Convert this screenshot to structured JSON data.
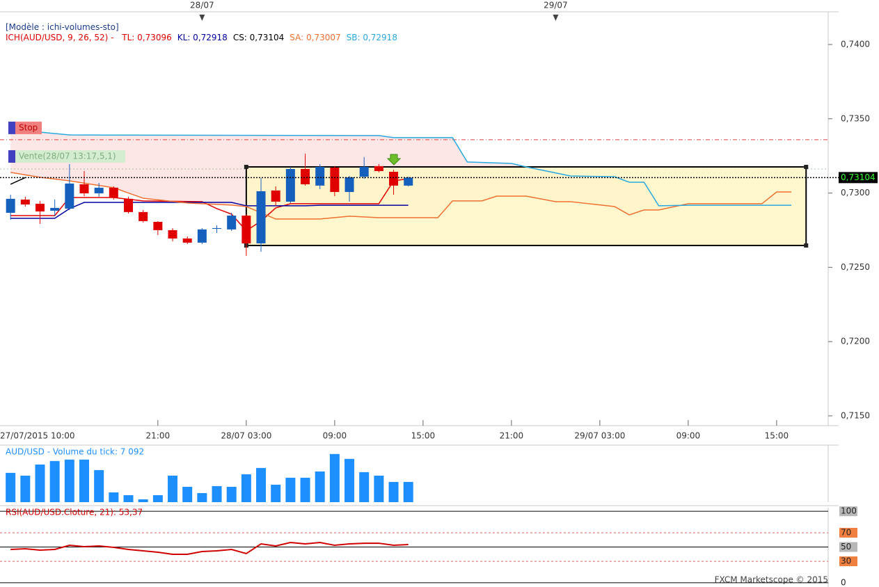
{
  "header": "[Modèle : ichi-volumes-sto]",
  "footer": "FXCM Marketscope © 2015",
  "chart_data": [
    {
      "type": "candlestick",
      "title": "ICH(AUD/USD, 9, 26, 52) -",
      "x": [
        "2015-07-27T11:00",
        "2015-07-27T12:00",
        "2015-07-27T13:00",
        "2015-07-27T14:00",
        "2015-07-27T15:00",
        "2015-07-27T16:00",
        "2015-07-27T17:00",
        "2015-07-27T18:00",
        "2015-07-27T19:00",
        "2015-07-27T20:00",
        "2015-07-27T21:00",
        "2015-07-27T22:00",
        "2015-07-27T23:00",
        "2015-07-28T00:00",
        "2015-07-28T01:00",
        "2015-07-28T02:00",
        "2015-07-28T03:00",
        "2015-07-28T04:00",
        "2015-07-28T05:00",
        "2015-07-28T06:00",
        "2015-07-28T07:00",
        "2015-07-28T08:00",
        "2015-07-28T09:00",
        "2015-07-28T10:00",
        "2015-07-28T11:00",
        "2015-07-28T12:00",
        "2015-07-28T13:00",
        "2015-07-28T14:00"
      ],
      "open": [
        0.72867,
        0.72956,
        0.72928,
        0.72881,
        0.72895,
        0.73059,
        0.72998,
        0.73036,
        0.72961,
        0.72872,
        0.72806,
        0.7275,
        0.72694,
        0.72666,
        0.72759,
        0.72755,
        0.72848,
        0.72661,
        0.73017,
        0.72942,
        0.73162,
        0.7305,
        0.73171,
        0.73007,
        0.7311,
        0.73181,
        0.73143,
        0.7305
      ],
      "high": [
        0.72989,
        0.72975,
        0.72947,
        0.72956,
        0.73195,
        0.73148,
        0.73068,
        0.73045,
        0.72975,
        0.72886,
        0.72811,
        0.72764,
        0.72708,
        0.72764,
        0.72783,
        0.72867,
        0.72858,
        0.73101,
        0.73045,
        0.73176,
        0.73265,
        0.73195,
        0.73181,
        0.73115,
        0.73242,
        0.73195,
        0.73157,
        0.7311
      ],
      "low": [
        0.7282,
        0.72909,
        0.72792,
        0.72844,
        0.72886,
        0.72979,
        0.72975,
        0.72956,
        0.72862,
        0.72801,
        0.72717,
        0.72675,
        0.72656,
        0.72656,
        0.72731,
        0.72745,
        0.72577,
        0.72605,
        0.72914,
        0.72933,
        0.7305,
        0.73026,
        0.72979,
        0.72942,
        0.73096,
        0.73139,
        0.72989,
        0.73045
      ],
      "close": [
        0.72961,
        0.72923,
        0.72876,
        0.729,
        0.73064,
        0.72998,
        0.73036,
        0.7297,
        0.72872,
        0.72811,
        0.7275,
        0.72694,
        0.72666,
        0.72755,
        0.72764,
        0.72848,
        0.72661,
        0.73012,
        0.72942,
        0.73162,
        0.73059,
        0.73176,
        0.73007,
        0.73106,
        0.73176,
        0.73148,
        0.7305,
        0.73104
      ],
      "up_color": "#1560bd",
      "down_color": "#e00000",
      "series": [
        {
          "name": "TL: 0,73096",
          "color": "#e00000",
          "x": [
            "2015-07-27T11:00",
            "2015-07-27T14:00",
            "2015-07-27T15:00",
            "2015-07-27T18:00",
            "2015-07-27T20:00",
            "2015-07-28T00:00",
            "2015-07-28T01:00",
            "2015-07-28T02:00",
            "2015-07-28T03:00",
            "2015-07-28T04:00",
            "2015-07-28T05:00",
            "2015-07-28T06:00",
            "2015-07-28T12:00",
            "2015-07-28T13:00",
            "2015-07-28T14:00"
          ],
          "values": [
            0.72848,
            0.72848,
            0.7297,
            0.7297,
            0.72947,
            0.72942,
            0.72895,
            0.72858,
            0.72746,
            0.72811,
            0.729,
            0.72928,
            0.72928,
            0.73082,
            0.73096
          ]
        },
        {
          "name": "KL: 0,72918",
          "color": "#0000a0",
          "x": [
            "2015-07-27T11:00",
            "2015-07-27T14:00",
            "2015-07-27T15:00",
            "2015-07-27T16:00",
            "2015-07-28T02:00",
            "2015-07-28T03:00",
            "2015-07-28T07:00",
            "2015-07-28T08:00",
            "2015-07-28T14:00"
          ],
          "values": [
            0.7283,
            0.7283,
            0.72895,
            0.72937,
            0.72937,
            0.72914,
            0.72914,
            0.72918,
            0.72918
          ]
        },
        {
          "name": "CS: 0,73104",
          "color": "#000000",
          "x": [
            "2015-07-27T11:00",
            "2015-07-27T12:00"
          ],
          "values": [
            0.73059,
            0.73104
          ]
        },
        {
          "name": "SA: 0,73007",
          "color": "#f07030",
          "x": [
            "2015-07-27T11:00",
            "2015-07-27T13:00",
            "2015-07-27T15:00",
            "2015-07-27T18:00",
            "2015-07-27T20:00",
            "2015-07-27T23:00",
            "2015-07-28T02:00",
            "2015-07-28T03:00",
            "2015-07-28T05:00",
            "2015-07-28T08:00",
            "2015-07-28T10:00",
            "2015-07-28T12:00",
            "2015-07-28T16:00",
            "2015-07-28T17:00",
            "2015-07-28T19:00",
            "2015-07-28T20:00",
            "2015-07-28T22:00",
            "2015-07-29T00:00",
            "2015-07-29T01:00",
            "2015-07-29T04:00",
            "2015-07-29T05:00",
            "2015-07-29T06:00",
            "2015-07-29T07:00",
            "2015-07-29T09:00",
            "2015-07-29T14:00",
            "2015-07-29T15:00",
            "2015-07-29T16:00"
          ],
          "values": [
            0.73139,
            0.73106,
            0.73082,
            0.73036,
            0.72965,
            0.72933,
            0.72919,
            0.72909,
            0.72825,
            0.72825,
            0.72844,
            0.72834,
            0.72834,
            0.72947,
            0.72947,
            0.72979,
            0.72979,
            0.72942,
            0.72942,
            0.72909,
            0.72853,
            0.72886,
            0.72886,
            0.72928,
            0.72928,
            0.73007,
            0.73007
          ]
        },
        {
          "name": "SB: 0,72918",
          "color": "#29a8e0",
          "x": [
            "2015-07-27T11:00",
            "2015-07-27T13:00",
            "2015-07-27T15:00",
            "2015-07-28T12:00",
            "2015-07-28T13:00",
            "2015-07-28T17:00",
            "2015-07-28T18:00",
            "2015-07-28T21:00",
            "2015-07-28T22:00",
            "2015-07-29T01:00",
            "2015-07-29T04:00",
            "2015-07-29T05:00",
            "2015-07-29T06:00",
            "2015-07-29T07:00",
            "2015-07-29T09:00",
            "2015-07-29T16:00"
          ],
          "values": [
            0.73457,
            0.7341,
            0.73391,
            0.73387,
            0.73373,
            0.73373,
            0.73209,
            0.73199,
            0.73176,
            0.73115,
            0.7311,
            0.73073,
            0.73073,
            0.72914,
            0.72918,
            0.72918
          ]
        }
      ],
      "cloud_color": "#fde6e6",
      "xlim": [
        "2015-07-27T10:17",
        "2015-07-29T18:30"
      ],
      "xticks": [
        {
          "value": "2015-07-27T10:00",
          "label": "27/07/2015 10:00"
        },
        {
          "value": "2015-07-27T21:00",
          "label": "21:00"
        },
        {
          "value": "2015-07-28T03:00",
          "label": "28/07 03:00"
        },
        {
          "value": "2015-07-28T09:00",
          "label": "09:00"
        },
        {
          "value": "2015-07-28T15:00",
          "label": "15:00"
        },
        {
          "value": "2015-07-28T21:00",
          "label": "21:00"
        },
        {
          "value": "2015-07-29T03:00",
          "label": "29/07 03:00"
        },
        {
          "value": "2015-07-29T09:00",
          "label": "09:00"
        },
        {
          "value": "2015-07-29T15:00",
          "label": "15:00"
        }
      ],
      "top_xticks": [
        {
          "value": "2015-07-28T00:00",
          "label": "28/07"
        },
        {
          "value": "2015-07-29T00:00",
          "label": "29/07"
        }
      ],
      "ylim": [
        0.71434,
        0.7422
      ],
      "yticks": [
        {
          "value": 0.715,
          "label": "0,7150"
        },
        {
          "value": 0.72,
          "label": "0,7200"
        },
        {
          "value": 0.725,
          "label": "0,7250"
        },
        {
          "value": 0.73,
          "label": "0,7300"
        },
        {
          "value": 0.735,
          "label": "0,7350"
        },
        {
          "value": 0.74,
          "label": "0,7400"
        }
      ],
      "last_price": 0.73104,
      "last_price_label": "0,73104",
      "stop": {
        "label": "Stop",
        "value": 0.73359,
        "color": "#e04040"
      },
      "order": {
        "label": "Vente(28/07 13:17,5,1)",
        "value": 0.73162,
        "color": "#7fae7f"
      },
      "rectangle": {
        "x": [
          "2015-07-28T03:00",
          "2015-07-29T17:00"
        ],
        "y": [
          0.72647,
          0.73176
        ],
        "fill": "#fff6c4"
      }
    },
    {
      "type": "bar",
      "title": "AUD/USD - Volume du tick: 7 092",
      "x": [
        "2015-07-27T11:00",
        "2015-07-27T12:00",
        "2015-07-27T13:00",
        "2015-07-27T14:00",
        "2015-07-27T15:00",
        "2015-07-27T16:00",
        "2015-07-27T17:00",
        "2015-07-27T18:00",
        "2015-07-27T19:00",
        "2015-07-27T20:00",
        "2015-07-27T21:00",
        "2015-07-27T22:00",
        "2015-07-27T23:00",
        "2015-07-28T00:00",
        "2015-07-28T01:00",
        "2015-07-28T02:00",
        "2015-07-28T03:00",
        "2015-07-28T04:00",
        "2015-07-28T05:00",
        "2015-07-28T06:00",
        "2015-07-28T07:00",
        "2015-07-28T08:00",
        "2015-07-28T09:00",
        "2015-07-28T10:00",
        "2015-07-28T11:00",
        "2015-07-28T12:00",
        "2015-07-28T13:00",
        "2015-07-28T14:00"
      ],
      "values": [
        10270,
        9300,
        13200,
        14430,
        14920,
        14920,
        11250,
        3420,
        2450,
        980,
        2450,
        9300,
        5380,
        3180,
        5630,
        5380,
        9780,
        11990,
        6120,
        8560,
        8560,
        10760,
        16880,
        15170,
        10520,
        9300,
        7090,
        7092
      ],
      "color": "#1e8fff",
      "xlim": [
        "2015-07-27T10:17",
        "2015-07-29T18:30"
      ],
      "ylim": [
        0,
        20000
      ]
    },
    {
      "type": "line",
      "title": "RSI(AUD/USD.Cloture, 21): 53,37",
      "x": [
        "2015-07-27T11:00",
        "2015-07-27T12:00",
        "2015-07-27T13:00",
        "2015-07-27T14:00",
        "2015-07-27T15:00",
        "2015-07-27T16:00",
        "2015-07-27T17:00",
        "2015-07-27T18:00",
        "2015-07-27T19:00",
        "2015-07-27T20:00",
        "2015-07-27T21:00",
        "2015-07-27T22:00",
        "2015-07-27T23:00",
        "2015-07-28T00:00",
        "2015-07-28T01:00",
        "2015-07-28T02:00",
        "2015-07-28T03:00",
        "2015-07-28T04:00",
        "2015-07-28T05:00",
        "2015-07-28T06:00",
        "2015-07-28T07:00",
        "2015-07-28T08:00",
        "2015-07-28T09:00",
        "2015-07-28T10:00",
        "2015-07-28T11:00",
        "2015-07-28T12:00",
        "2015-07-28T13:00",
        "2015-07-28T14:00"
      ],
      "values": [
        46.6,
        47.6,
        45.6,
        46.6,
        52.4,
        50.5,
        51.5,
        49.5,
        46.6,
        44.7,
        42.7,
        39.8,
        39.8,
        43.7,
        44.7,
        46.6,
        40.8,
        54.4,
        51.5,
        56.3,
        54.4,
        56.3,
        52.4,
        54.4,
        55.3,
        55.3,
        52.4,
        53.37
      ],
      "color": "#d00000",
      "xlim": [
        "2015-07-27T10:17",
        "2015-07-29T18:30"
      ],
      "ylim": [
        -4,
        105
      ],
      "yticks": [
        0,
        30,
        50,
        70,
        100
      ],
      "ytick_colors": [
        "#ffffff",
        "#f08040",
        "#b8b8b8",
        "#f08040",
        "#b8b8b8"
      ],
      "ytick_dashed": [
        false,
        true,
        false,
        true,
        false
      ]
    }
  ]
}
